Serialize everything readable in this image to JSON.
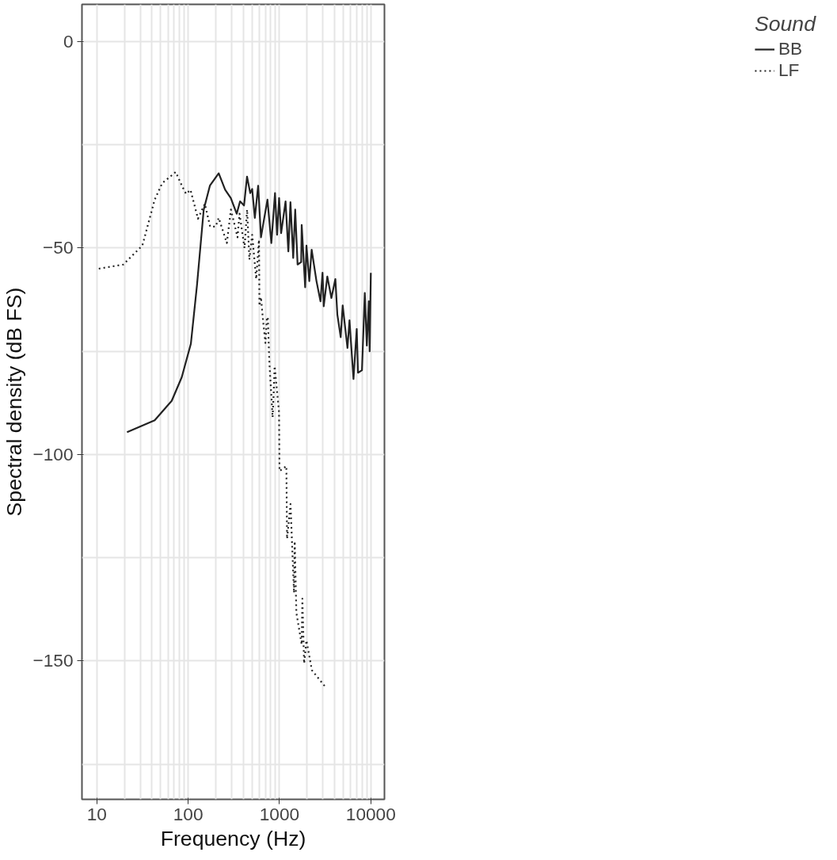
{
  "chart_data": {
    "type": "line",
    "xlabel": "Frequency (Hz)",
    "ylabel": "Spectral density (dB FS)",
    "legend_title": "Sound",
    "legend": "right",
    "log": "x",
    "grid": true,
    "xlim": [
      6.87,
      14100
    ],
    "ylim": [
      -183.5,
      9
    ],
    "xticks": [
      10,
      {
        "value": 20,
        "label": null
      },
      {
        "value": 30,
        "label": null
      },
      {
        "value": 40,
        "label": null
      },
      {
        "value": 50,
        "label": null
      },
      {
        "value": 60,
        "label": null
      },
      {
        "value": 70,
        "label": null
      },
      {
        "value": 80,
        "label": null
      },
      {
        "value": 90,
        "label": null
      },
      100,
      {
        "value": 200,
        "label": null
      },
      {
        "value": 300,
        "label": null
      },
      {
        "value": 400,
        "label": null
      },
      {
        "value": 500,
        "label": null
      },
      {
        "value": 600,
        "label": null
      },
      {
        "value": 700,
        "label": null
      },
      {
        "value": 800,
        "label": null
      },
      {
        "value": 900,
        "label": null
      },
      1000,
      {
        "value": 2000,
        "label": null
      },
      {
        "value": 3000,
        "label": null
      },
      {
        "value": 4000,
        "label": null
      },
      {
        "value": 5000,
        "label": null
      },
      {
        "value": 6000,
        "label": null
      },
      {
        "value": 7000,
        "label": null
      },
      {
        "value": 8000,
        "label": null
      },
      {
        "value": 9000,
        "label": null
      },
      10000
    ],
    "yticks": [
      {
        "value": -175,
        "label": null
      },
      {
        "value": -150,
        "label": "−150"
      },
      {
        "value": -125,
        "label": null
      },
      {
        "value": -100,
        "label": "−100"
      },
      {
        "value": -75,
        "label": null
      },
      {
        "value": -50,
        "label": "−50"
      },
      {
        "value": -25,
        "label": null
      },
      0
    ],
    "series": [
      {
        "name": "BB",
        "color": "#222222",
        "line_style": "solid",
        "x": [
          21.4,
          43,
          66,
          85,
          107,
          125,
          148,
          173,
          216,
          254,
          293,
          340,
          370,
          409,
          441,
          478,
          502,
          537,
          584,
          627,
          668,
          738,
          814,
          893,
          941,
          990,
          1042,
          1165,
          1250,
          1318,
          1413,
          1486,
          1578,
          1728,
          1750,
          1910,
          1974,
          2120,
          2250,
          2540,
          2810,
          2960,
          3050,
          3340,
          3700,
          4090,
          4300,
          4680,
          4920,
          5550,
          5840,
          6460,
          7010,
          7240,
          8000,
          8590,
          9040,
          9510,
          9710,
          10000
        ],
        "values": [
          -94.6,
          -91.7,
          -87,
          -81.3,
          -73.2,
          -58.9,
          -40.7,
          -34.9,
          -31.9,
          -35.9,
          -37.9,
          -41.7,
          -38.7,
          -39.7,
          -32.7,
          -36.7,
          -35.7,
          -42.7,
          -34.9,
          -47.4,
          -43.8,
          -38.3,
          -48.8,
          -36.7,
          -46.8,
          -37.9,
          -46.4,
          -38.7,
          -50.8,
          -38.9,
          -52.4,
          -40.7,
          -54,
          -53.4,
          -44.4,
          -59.5,
          -49.4,
          -58,
          -50.4,
          -58,
          -62.9,
          -56,
          -64.1,
          -56.9,
          -62.1,
          -57.5,
          -66.1,
          -71.6,
          -63.9,
          -74.2,
          -67.5,
          -81.7,
          -69.6,
          -80.2,
          -79.6,
          -60.9,
          -73.6,
          -62.9,
          -75,
          -56
        ]
      },
      {
        "name": "LF",
        "color": "#222222",
        "line_style": "dotted",
        "x": [
          10.5,
          19.5,
          31.5,
          43,
          52,
          73,
          87,
          95,
          106,
          128,
          152,
          174,
          200,
          216,
          265,
          294,
          347,
          365,
          414,
          442,
          468,
          502,
          556,
          596,
          603,
          627,
          660,
          701,
          728,
          745,
          769,
          776,
          841,
          860,
          885,
          988,
          1000,
          1189,
          1210,
          1320,
          1442,
          1468,
          1530,
          1750,
          1780,
          1860,
          1974,
          2260,
          3240
        ],
        "values": [
          -55,
          -54,
          -49.4,
          -38.3,
          -34.3,
          -31.6,
          -35.3,
          -36.9,
          -35.9,
          -42.9,
          -39.3,
          -44.8,
          -44.8,
          -42.7,
          -48.8,
          -40.7,
          -47.4,
          -41.7,
          -50,
          -40.7,
          -52.8,
          -46.8,
          -57.5,
          -48,
          -64,
          -61.9,
          -67.5,
          -73,
          -67,
          -66.7,
          -75.8,
          -78,
          -91,
          -86,
          -78.6,
          -89.7,
          -104,
          -102.8,
          -120.4,
          -112,
          -133.5,
          -121,
          -138.3,
          -146,
          -134.9,
          -150.6,
          -145,
          -152.2,
          -156.5
        ]
      }
    ]
  }
}
